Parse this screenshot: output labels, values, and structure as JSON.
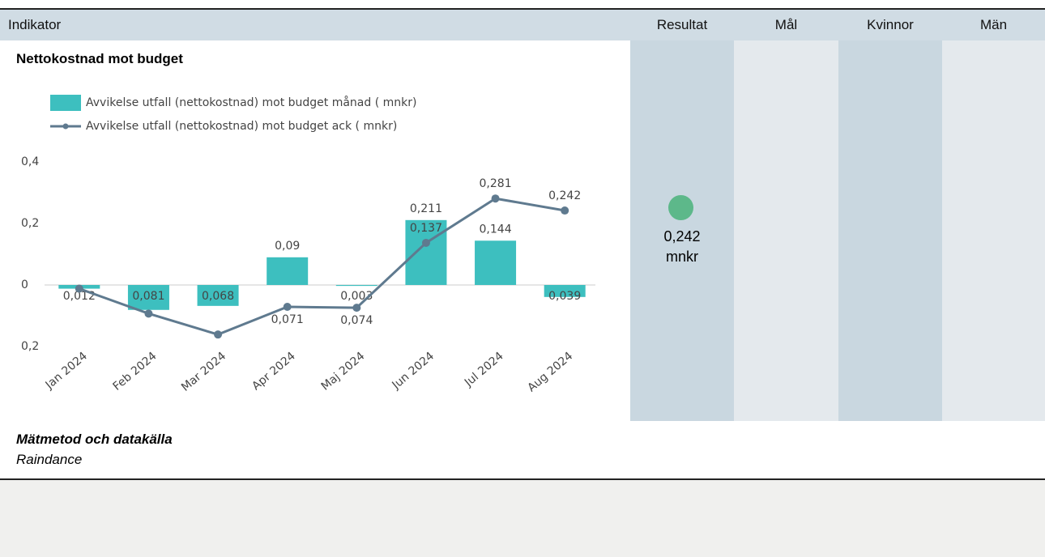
{
  "header": {
    "columns": [
      "Indikator",
      "Resultat",
      "Mål",
      "Kvinnor",
      "Män"
    ]
  },
  "indicator": {
    "title": "Nettokostnad mot budget"
  },
  "chart_data": {
    "type": "bar",
    "categories": [
      "Jan 2024",
      "Feb 2024",
      "Mar 2024",
      "Apr 2024",
      "Maj 2024",
      "Jun 2024",
      "Jul 2024",
      "Aug 2024"
    ],
    "series": [
      {
        "name": "Avvikelse utfall (nettokostnad) mot budget månad ( mnkr)",
        "type": "bar",
        "color": "#3dbfbf",
        "values": [
          -0.012,
          -0.081,
          -0.068,
          0.09,
          -0.003,
          0.211,
          0.144,
          -0.039
        ],
        "value_labels": [
          "0,012",
          "0,081",
          "0,068",
          "0,09",
          "0,003",
          "0,211",
          "0,144",
          "0,039"
        ]
      },
      {
        "name": "Avvikelse utfall (nettokostnad) mot budget ack ( mnkr)",
        "type": "line",
        "color": "#5f7a8f",
        "values": [
          -0.012,
          -0.093,
          -0.161,
          -0.071,
          -0.074,
          0.137,
          0.281,
          0.242
        ],
        "value_labels": [
          null,
          null,
          null,
          "0,071",
          "0,074",
          "0,137",
          "0,281",
          "0,242"
        ]
      }
    ],
    "ylim": [
      -0.2,
      0.4
    ],
    "yticks": [
      {
        "value": 0.4,
        "label": "0,4"
      },
      {
        "value": 0.2,
        "label": "0,2"
      },
      0,
      {
        "value": -0.2,
        "label": "0,2"
      }
    ]
  },
  "result": {
    "value": "0,242",
    "unit": "mnkr"
  },
  "footer": {
    "title": "Mätmetod och datakälla",
    "text": "Raindance"
  }
}
